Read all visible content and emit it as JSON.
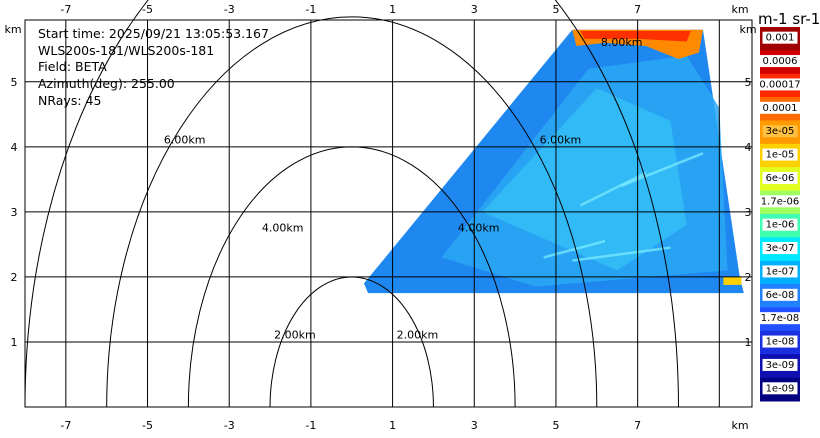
{
  "info": {
    "start_time": "Start time: 2025/09/21 13:05:53.167",
    "source": "WLS200s-181/WLS200s-181",
    "field": "Field: BETA",
    "azimuth": "Azimuth(deg): 255.00",
    "nrays": "NRays: 45"
  },
  "chart_data": {
    "type": "heatmap",
    "title": "",
    "x_unit": "km",
    "y_unit": "km",
    "xlim": [
      -8.0,
      9.8
    ],
    "ylim": [
      0,
      5.95
    ],
    "x_ticks": [
      -7,
      -5,
      -3,
      -1,
      1,
      3,
      5,
      7
    ],
    "y_ticks": [
      1,
      2,
      3,
      4,
      5
    ],
    "grid": true,
    "range_rings_km": [
      2,
      4,
      6,
      8
    ],
    "range_ring_labels": [
      "2.00km",
      "4.00km",
      "6.00km",
      "8.00km"
    ],
    "radar_origin": [
      0,
      0
    ],
    "sector": {
      "description": "RHI-like sector of backscatter from lower-left apex toward upper-right",
      "vertices_km": [
        [
          0.3,
          1.9
        ],
        [
          0.4,
          1.75
        ],
        [
          9.6,
          1.75
        ],
        [
          9.5,
          2.0
        ],
        [
          8.6,
          5.8
        ],
        [
          5.4,
          5.8
        ]
      ],
      "dominant_value": "3e-07 to 1e-06",
      "high_band_top": "1e-03 to 1e-04 near 8.00km ring"
    },
    "colorbar": {
      "title": "m-1 sr-1",
      "labels": [
        "0.001",
        "0.0006",
        "0.00017",
        "0.0001",
        "3e-05",
        "1e-05",
        "6e-06",
        "1.7e-06",
        "1e-06",
        "3e-07",
        "1e-07",
        "6e-08",
        "1.7e-08",
        "1e-08",
        "3e-09",
        "1e-09"
      ],
      "colors": [
        "#a00000",
        "#d00000",
        "#ff2a00",
        "#ff6a00",
        "#ff9a00",
        "#ffd000",
        "#e0ff20",
        "#a0ff60",
        "#40ffb0",
        "#00e8ff",
        "#00b0ff",
        "#2080ff",
        "#2050ff",
        "#1a30e0",
        "#1010b0",
        "#000080"
      ],
      "label_fills": [
        "#ffffff",
        "#ffffff",
        "#ffffff",
        "#ffffff",
        "#ffbf40",
        "#ffffff",
        "#ffffff",
        "#ffffff",
        "#ffffff",
        "#ffffff",
        "#ffffff",
        "#ffffff",
        "#ffffff",
        "#ffffff",
        "#ffffff",
        "#ffffff"
      ]
    }
  }
}
